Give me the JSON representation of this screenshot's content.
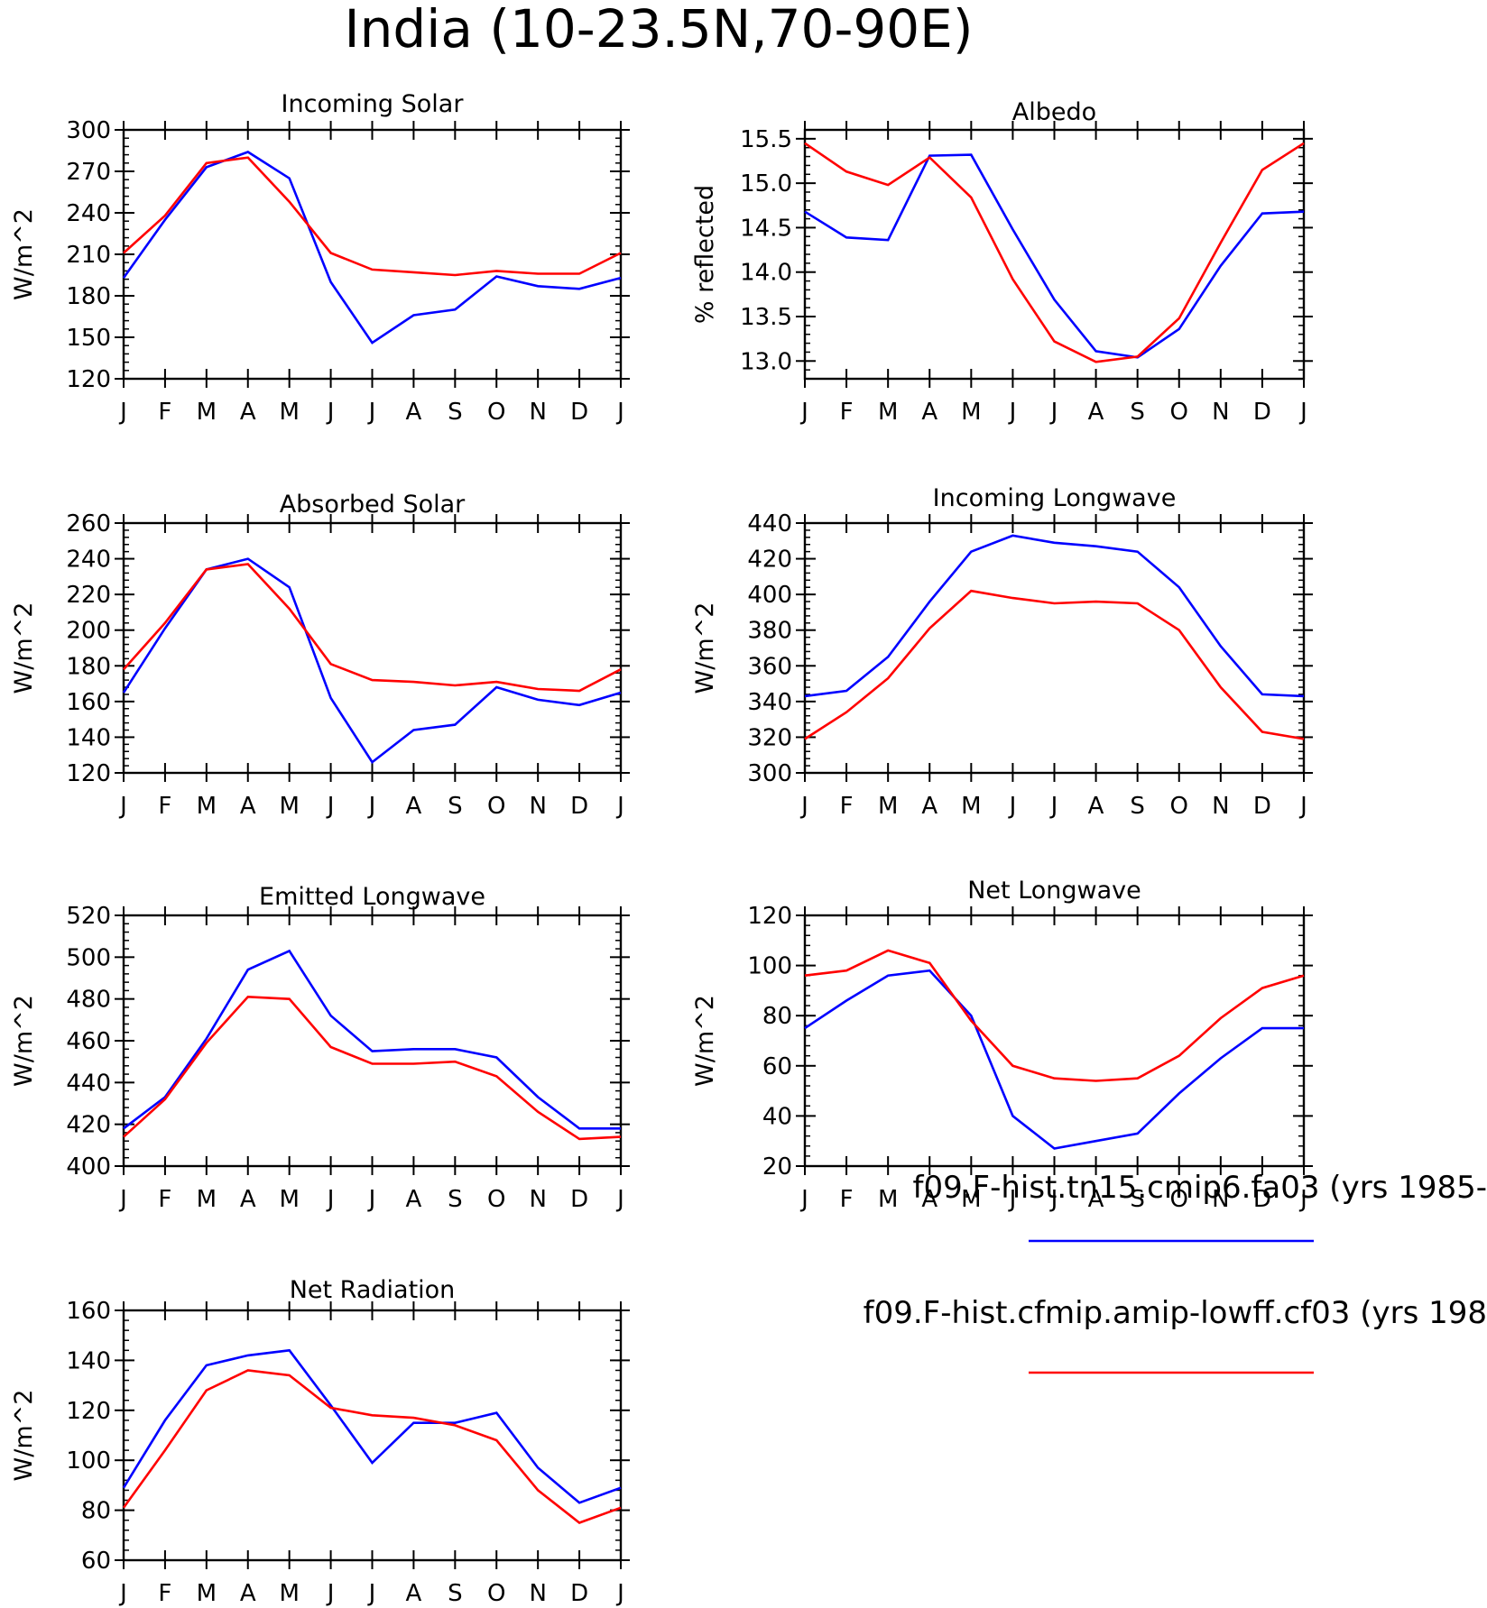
{
  "figure": {
    "title": "India (10-23.5N,70-90E)"
  },
  "legend": {
    "entries": [
      {
        "label": "f09.F-hist.tn15.cmip6.fa03 (yrs 1985-",
        "color": "#0000ff"
      },
      {
        "label": "f09.F-hist.cfmip.amip-lowff.cf03 (yrs 198",
        "color": "#ff0000"
      }
    ]
  },
  "colors": {
    "series_1": "#0000ff",
    "series_2": "#ff0000",
    "axes": "#000000"
  },
  "chart_data": [
    {
      "type": "line",
      "title": "Incoming Solar",
      "ylabel": "W/m^2",
      "categories": [
        "J",
        "F",
        "M",
        "A",
        "M",
        "J",
        "J",
        "A",
        "S",
        "O",
        "N",
        "D",
        "J"
      ],
      "ylim": [
        120,
        300
      ],
      "yticks": [
        "120",
        "150",
        "180",
        "210",
        "240",
        "270",
        "300"
      ],
      "series": [
        {
          "color": "#0000ff",
          "values": [
            193,
            235,
            273,
            284,
            265,
            190,
            146,
            166,
            170,
            194,
            187,
            185,
            193
          ]
        },
        {
          "color": "#ff0000",
          "values": [
            211,
            238,
            276,
            280,
            248,
            211,
            199,
            197,
            195,
            198,
            196,
            196,
            211
          ]
        }
      ]
    },
    {
      "type": "line",
      "title": "Albedo",
      "ylabel": "% reflected",
      "categories": [
        "J",
        "F",
        "M",
        "A",
        "M",
        "J",
        "J",
        "A",
        "S",
        "O",
        "N",
        "D",
        "J"
      ],
      "ylim": [
        12.8,
        15.6
      ],
      "yticks": [
        "13.0",
        "13.5",
        "14.0",
        "14.5",
        "15.0",
        "15.5"
      ],
      "series": [
        {
          "color": "#0000ff",
          "values": [
            14.68,
            14.39,
            14.36,
            15.31,
            15.32,
            14.48,
            13.69,
            13.11,
            13.04,
            13.36,
            14.07,
            14.66,
            14.68
          ]
        },
        {
          "color": "#ff0000",
          "values": [
            15.45,
            15.13,
            14.98,
            15.29,
            14.84,
            13.92,
            13.22,
            12.99,
            13.05,
            13.48,
            14.33,
            15.15,
            15.45
          ]
        }
      ]
    },
    {
      "type": "line",
      "title": "Absorbed Solar",
      "ylabel": "W/m^2",
      "categories": [
        "J",
        "F",
        "M",
        "A",
        "M",
        "J",
        "J",
        "A",
        "S",
        "O",
        "N",
        "D",
        "J"
      ],
      "ylim": [
        120,
        260
      ],
      "yticks": [
        "120",
        "140",
        "160",
        "180",
        "200",
        "220",
        "240",
        "260"
      ],
      "series": [
        {
          "color": "#0000ff",
          "values": [
            165,
            201,
            234,
            240,
            224,
            162,
            126,
            144,
            147,
            168,
            161,
            158,
            165
          ]
        },
        {
          "color": "#ff0000",
          "values": [
            178,
            204,
            234,
            237,
            212,
            181,
            172,
            171,
            169,
            171,
            167,
            166,
            178
          ]
        }
      ]
    },
    {
      "type": "line",
      "title": "Incoming Longwave",
      "ylabel": "W/m^2",
      "categories": [
        "J",
        "F",
        "M",
        "A",
        "M",
        "J",
        "J",
        "A",
        "S",
        "O",
        "N",
        "D",
        "J"
      ],
      "ylim": [
        300,
        440
      ],
      "yticks": [
        "300",
        "320",
        "340",
        "360",
        "380",
        "400",
        "420",
        "440"
      ],
      "series": [
        {
          "color": "#0000ff",
          "values": [
            343,
            346,
            365,
            396,
            424,
            433,
            429,
            427,
            424,
            404,
            371,
            344,
            343
          ]
        },
        {
          "color": "#ff0000",
          "values": [
            319,
            334,
            353,
            381,
            402,
            398,
            395,
            396,
            395,
            380,
            348,
            323,
            319
          ]
        }
      ]
    },
    {
      "type": "line",
      "title": "Emitted Longwave",
      "ylabel": "W/m^2",
      "categories": [
        "J",
        "F",
        "M",
        "A",
        "M",
        "J",
        "J",
        "A",
        "S",
        "O",
        "N",
        "D",
        "J"
      ],
      "ylim": [
        400,
        520
      ],
      "yticks": [
        "400",
        "420",
        "440",
        "460",
        "480",
        "500",
        "520"
      ],
      "series": [
        {
          "color": "#0000ff",
          "values": [
            418,
            433,
            461,
            494,
            503,
            472,
            455,
            456,
            456,
            452,
            433,
            418,
            418
          ]
        },
        {
          "color": "#ff0000",
          "values": [
            414,
            432,
            459,
            481,
            480,
            457,
            449,
            449,
            450,
            443,
            426,
            413,
            414
          ]
        }
      ]
    },
    {
      "type": "line",
      "title": "Net Longwave",
      "ylabel": "W/m^2",
      "categories": [
        "J",
        "F",
        "M",
        "A",
        "M",
        "J",
        "J",
        "A",
        "S",
        "O",
        "N",
        "D",
        "J"
      ],
      "ylim": [
        20,
        120
      ],
      "yticks": [
        "20",
        "40",
        "60",
        "80",
        "100",
        "120"
      ],
      "series": [
        {
          "color": "#0000ff",
          "values": [
            75,
            86,
            96,
            98,
            80,
            40,
            27,
            30,
            33,
            49,
            63,
            75,
            75
          ]
        },
        {
          "color": "#ff0000",
          "values": [
            96,
            98,
            106,
            101,
            78,
            60,
            55,
            54,
            55,
            64,
            79,
            91,
            96
          ]
        }
      ]
    },
    {
      "type": "line",
      "title": "Net Radiation",
      "ylabel": "W/m^2",
      "categories": [
        "J",
        "F",
        "M",
        "A",
        "M",
        "J",
        "J",
        "A",
        "S",
        "O",
        "N",
        "D",
        "J"
      ],
      "ylim": [
        60,
        160
      ],
      "yticks": [
        "60",
        "80",
        "100",
        "120",
        "140",
        "160"
      ],
      "series": [
        {
          "color": "#0000ff",
          "values": [
            89,
            116,
            138,
            142,
            144,
            122,
            99,
            115,
            115,
            119,
            97,
            83,
            89
          ]
        },
        {
          "color": "#ff0000",
          "values": [
            81,
            104,
            128,
            136,
            134,
            121,
            118,
            117,
            114,
            108,
            88,
            75,
            81
          ]
        }
      ]
    }
  ]
}
